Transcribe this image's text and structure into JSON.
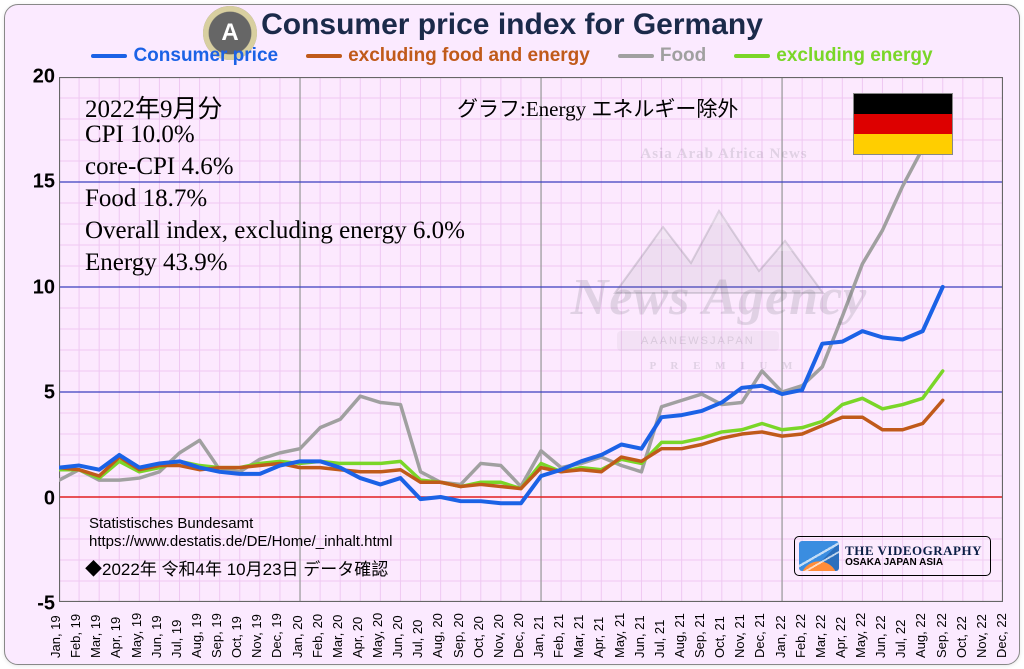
{
  "title": "Consumer price index for Germany",
  "legend": [
    {
      "label": "Consumer price",
      "color": "#1b62e6"
    },
    {
      "label": "excluding food and energy",
      "color": "#c05a1a"
    },
    {
      "label": "Food",
      "color": "#a0a0a0"
    },
    {
      "label": "excluding energy",
      "color": "#7ad628"
    }
  ],
  "chart": {
    "type": "line",
    "background_color": "#fbeaff",
    "plot_background_color": "#fce9fe",
    "grid_minor_color": "#efc8f2",
    "grid_minor_step_x_months": 1,
    "grid_minor_step_y": 1,
    "grid_major_x_color": "#9e9e9e",
    "grid_major_y_color": "#3b3fbf",
    "zero_line_color": "#e22020",
    "border_color": "#666666",
    "ylim": [
      -5,
      20
    ],
    "ytick_step": 5,
    "yticks": [
      -5,
      0,
      5,
      10,
      15,
      20
    ],
    "xlim_months": [
      "Jan, 19",
      "Dec, 22"
    ],
    "x_labels": [
      "Jan, 19",
      "Feb, 19",
      "Mar, 19",
      "Apr, 19",
      "May, 19",
      "Jun, 19",
      "Jul, 19",
      "Aug, 19",
      "Sep, 19",
      "Oct, 19",
      "Nov, 19",
      "Dec, 19",
      "Jan, 20",
      "Feb, 20",
      "Mar, 20",
      "Apr, 20",
      "May, 20",
      "Jun, 20",
      "Jul, 20",
      "Aug, 20",
      "Sep, 20",
      "Oct, 20",
      "Nov, 20",
      "Dec, 20",
      "Jan, 21",
      "Feb, 21",
      "Mar, 21",
      "Apr, 21",
      "May, 21",
      "Jun, 21",
      "Jul, 21",
      "Aug, 21",
      "Sep, 21",
      "Oct, 21",
      "Nov, 21",
      "Dec, 21",
      "Jan, 22",
      "Feb, 22",
      "Mar, 22",
      "Apr, 22",
      "May, 22",
      "Jun, 22",
      "Jul, 22",
      "Aug, 22",
      "Sep, 22",
      "Oct, 22",
      "Nov, 22",
      "Dec, 22"
    ],
    "line_width_consumer": 4,
    "line_width_other": 3.5,
    "series": {
      "consumer_price": {
        "color": "#1b62e6",
        "values": [
          1.4,
          1.5,
          1.3,
          2.0,
          1.4,
          1.6,
          1.7,
          1.4,
          1.2,
          1.1,
          1.1,
          1.5,
          1.7,
          1.7,
          1.4,
          0.9,
          0.6,
          0.9,
          -0.1,
          0.0,
          -0.2,
          -0.2,
          -0.3,
          -0.3,
          1.0,
          1.3,
          1.7,
          2.0,
          2.5,
          2.3,
          3.8,
          3.9,
          4.1,
          4.5,
          5.2,
          5.3,
          4.9,
          5.1,
          7.3,
          7.4,
          7.9,
          7.6,
          7.5,
          7.9,
          10.0,
          null,
          null,
          null
        ]
      },
      "excl_food_energy": {
        "color": "#c05a1a",
        "values": [
          1.4,
          1.3,
          1.0,
          1.9,
          1.3,
          1.5,
          1.5,
          1.3,
          1.4,
          1.4,
          1.5,
          1.6,
          1.4,
          1.4,
          1.3,
          1.2,
          1.2,
          1.3,
          0.7,
          0.7,
          0.5,
          0.6,
          0.5,
          0.4,
          1.4,
          1.2,
          1.3,
          1.2,
          1.9,
          1.7,
          2.3,
          2.3,
          2.5,
          2.8,
          3.0,
          3.1,
          2.9,
          3.0,
          3.4,
          3.8,
          3.8,
          3.2,
          3.2,
          3.5,
          4.6,
          null,
          null,
          null
        ]
      },
      "food": {
        "color": "#a0a0a0",
        "values": [
          0.8,
          1.3,
          0.8,
          0.8,
          0.9,
          1.2,
          2.1,
          2.7,
          1.3,
          1.2,
          1.8,
          2.1,
          2.3,
          3.3,
          3.7,
          4.8,
          4.5,
          4.4,
          1.2,
          0.7,
          0.6,
          1.6,
          1.5,
          0.5,
          2.2,
          1.4,
          1.6,
          1.9,
          1.5,
          1.2,
          4.3,
          4.6,
          4.9,
          4.4,
          4.5,
          6.0,
          5.0,
          5.3,
          6.2,
          8.6,
          11.1,
          12.7,
          14.8,
          16.6,
          18.7,
          null,
          null,
          null
        ]
      },
      "excl_energy": {
        "color": "#7ad628",
        "values": [
          1.3,
          1.3,
          0.9,
          1.7,
          1.2,
          1.4,
          1.7,
          1.5,
          1.4,
          1.4,
          1.6,
          1.7,
          1.6,
          1.7,
          1.6,
          1.6,
          1.6,
          1.7,
          0.8,
          0.7,
          0.5,
          0.7,
          0.7,
          0.4,
          1.6,
          1.2,
          1.4,
          1.3,
          1.8,
          1.6,
          2.6,
          2.6,
          2.8,
          3.1,
          3.2,
          3.5,
          3.2,
          3.3,
          3.6,
          4.4,
          4.7,
          4.2,
          4.4,
          4.7,
          6.0,
          null,
          null,
          null
        ]
      }
    }
  },
  "annotations": {
    "box": [
      "2022年9月分",
      "CPI   10.0%",
      "core-CPI   4.6%",
      "Food   18.7%",
      "Overall index, excluding energy 6.0%",
      "Energy   43.9%"
    ],
    "box_font_size": 25,
    "graph_caption": "グラフ:Energy エネルギー除外",
    "graph_caption_font_size": 21,
    "source_line1": "Statistisches Bundesamt",
    "source_line2": "https://www.destatis.de/DE/Home/_inhalt.html",
    "date_note": "◆2022年 令和4年 10月23日 データ確認",
    "date_note_font_size": 17
  },
  "flag": {
    "top": "#000000",
    "mid": "#dd0000",
    "bot": "#ffce00"
  },
  "watermark": {
    "arc_text": "Asia Arab Africa News",
    "main_text": "News Agency",
    "banner_text": "AAANEWSJAPAN",
    "sub_text": "P R E M I U M"
  },
  "stamp": {
    "line1": "THE VIDEOGRAPHY",
    "line2": "OSAKA JAPAN ASIA"
  }
}
